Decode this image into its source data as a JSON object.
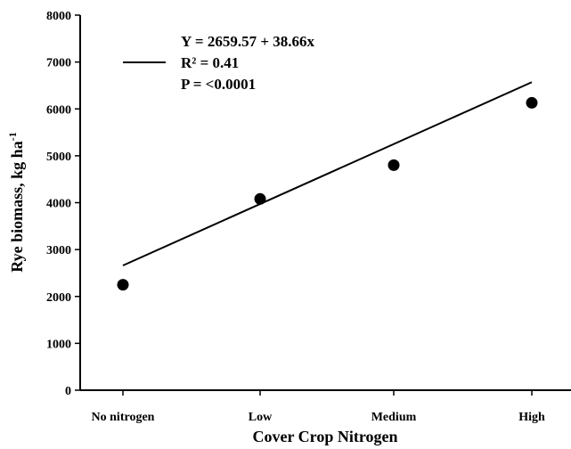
{
  "chart_data": {
    "type": "scatter",
    "xlabel": "Cover Crop Nitrogen",
    "ylabel": "Rye biomass, kg ha",
    "ylabel_sup": "-1",
    "ylim": [
      0,
      8000
    ],
    "yticks": [
      "0",
      "1000",
      "2000",
      "3000",
      "4000",
      "5000",
      "6000",
      "7000",
      "8000"
    ],
    "categories": [
      "No nitrogen",
      "Low",
      "Medium",
      "High"
    ],
    "series": [
      {
        "values": [
          2250,
          4080,
          4800,
          6130
        ]
      }
    ],
    "fit_line": {
      "y_start": 2660,
      "y_end": 6570
    },
    "legend": {
      "placement": "top-left",
      "lines": [
        "Y = 2659.57 + 38.66x",
        "R² = 0.41",
        "P = <0.0001"
      ]
    },
    "colors": {
      "ink": "#000000",
      "background": "#ffffff"
    }
  }
}
